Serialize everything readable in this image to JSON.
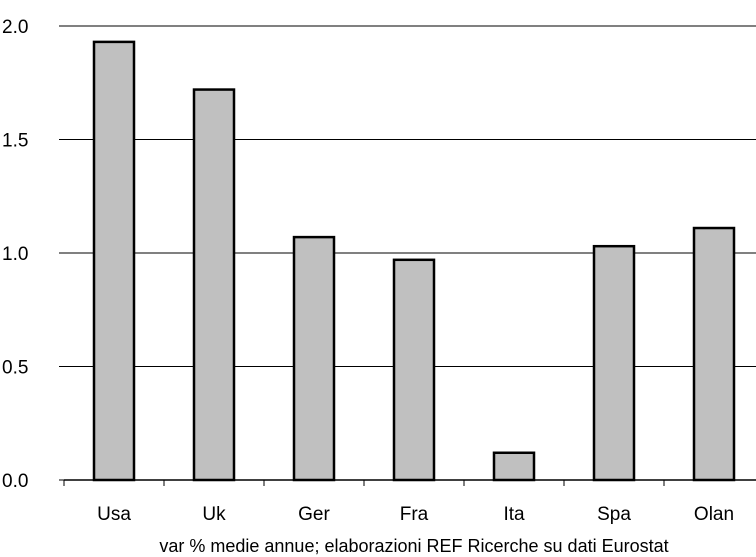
{
  "chart_data": {
    "type": "bar",
    "title": "",
    "xlabel": "",
    "ylabel": "",
    "categories": [
      "Usa",
      "Uk",
      "Ger",
      "Fra",
      "Ita",
      "Spa",
      "Olan"
    ],
    "values": [
      1.93,
      1.72,
      1.07,
      0.97,
      0.12,
      1.03,
      1.11
    ],
    "ylim": [
      0,
      2.0
    ],
    "yticks": [
      "0.0",
      "0.5",
      "1.0",
      "1.5",
      "2.0"
    ],
    "grid": true,
    "bar_color": "#c0c0c0",
    "bar_edge_color": "#000000",
    "caption": "var % medie annue; elaborazioni REF Ricerche su dati Eurostat"
  }
}
